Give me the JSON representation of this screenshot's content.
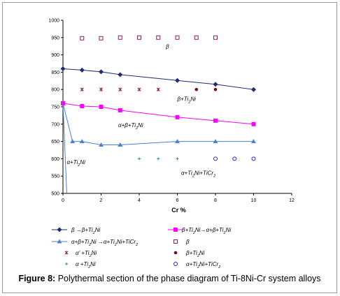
{
  "caption": {
    "label": "Figure 8:",
    "text": " Polythermal section of the phase diagram of Ti-8Ni-Cr system alloys"
  },
  "chart_data": {
    "type": "scatter",
    "title": "",
    "xlabel": "Cr %",
    "ylabel": "",
    "xlim": [
      0,
      12
    ],
    "ylim": [
      500,
      1000
    ],
    "xticks": [
      "0",
      "2",
      "4",
      "6",
      "8",
      "10",
      "12"
    ],
    "yticks": [
      "500",
      "550",
      "600",
      "650",
      "700",
      "750",
      "800",
      "850",
      "900",
      "950",
      "1000"
    ],
    "grid": false,
    "legend": "bottom",
    "colors": {
      "navy": "#1f2a78",
      "magenta": "#ff00ff",
      "blue": "#4a7fd4",
      "purple": "#8b1c62",
      "darkred": "#7a0a0a",
      "teal": "#2a8aa8",
      "ring": "#2222cc"
    },
    "series": [
      {
        "name": "β →β+Ti2Ni",
        "legend_html": "β →β+Ti<tspan baseline-shift='sub' font-size='6'>2</tspan>Ni",
        "mode": "line",
        "marker": "diamond",
        "color": "#1f2a78",
        "x": [
          0,
          1,
          2,
          3,
          6,
          8,
          10
        ],
        "y": [
          860,
          856,
          851,
          843,
          826,
          815,
          800
        ]
      },
      {
        "name": "β+Ti2Ni→α+β+Ti2Ni",
        "mode": "line",
        "marker": "square",
        "color": "#ff00ff",
        "x": [
          0,
          1,
          2,
          3,
          6,
          8,
          10
        ],
        "y": [
          760,
          752,
          750,
          740,
          720,
          710,
          700
        ]
      },
      {
        "name": "α+β+Ti2Ni →α+Ti2Ni+TiCr2",
        "mode": "line",
        "marker": "triangle",
        "color": "#4a7fd4",
        "x": [
          0.5,
          1,
          2,
          3,
          6,
          8,
          10
        ],
        "y": [
          650,
          650,
          640,
          640,
          650,
          650,
          650
        ]
      },
      {
        "name": "β",
        "mode": "points",
        "marker": "open-square",
        "color": "#8b1c62",
        "x": [
          1,
          2,
          3,
          4,
          5,
          6,
          7,
          8
        ],
        "y": [
          948,
          948,
          950,
          950,
          950,
          950,
          950,
          950
        ]
      },
      {
        "name": "α' +Ti2Ni",
        "mode": "points",
        "marker": "star",
        "color": "#8b1c62",
        "x": [
          1,
          2,
          3,
          4,
          5
        ],
        "y": [
          800,
          800,
          800,
          800,
          800
        ]
      },
      {
        "name": "β+Ti2Ni",
        "mode": "points",
        "marker": "dot",
        "color": "#7a0a0a",
        "x": [
          7,
          8
        ],
        "y": [
          800,
          800
        ]
      },
      {
        "name": "α +Ti2Ni",
        "mode": "points",
        "marker": "plus",
        "color": "#2a8aa8",
        "x": [
          4,
          5,
          6
        ],
        "y": [
          600,
          600,
          600
        ]
      },
      {
        "name": "α+Ti2Ni+TiCr2",
        "mode": "points",
        "marker": "ring",
        "color": "#2222cc",
        "x": [
          8,
          9,
          10
        ],
        "y": [
          600,
          600,
          600
        ]
      }
    ],
    "boundary_lines": [
      {
        "x": [
          0,
          0.5
        ],
        "y": [
          760,
          650
        ],
        "color": "#4a7fd4"
      },
      {
        "x": [
          0,
          0.2
        ],
        "y": [
          760,
          500
        ],
        "color": "#4a7fd4"
      }
    ],
    "region_labels": [
      {
        "text": "β",
        "x": 5.4,
        "y": 918
      },
      {
        "text": "β+Ti2Ni",
        "x": 6.0,
        "y": 767
      },
      {
        "text": "α+β+Ti2Ni",
        "x": 2.9,
        "y": 692
      },
      {
        "text": "α+Ti2Ni",
        "x": 0.2,
        "y": 585
      },
      {
        "text": "α+Ti2Ni+TiCr2",
        "x": 6.2,
        "y": 553
      }
    ]
  }
}
